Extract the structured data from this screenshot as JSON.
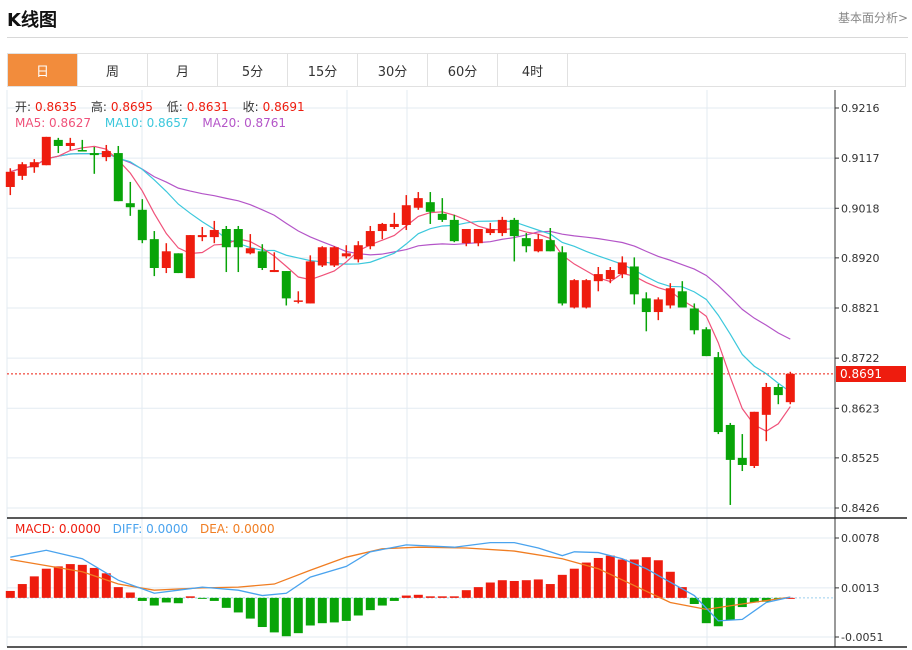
{
  "header": {
    "title": "K线图",
    "link": "基本面分析>"
  },
  "tabs": [
    {
      "label": "日",
      "active": true
    },
    {
      "label": "周"
    },
    {
      "label": "月"
    },
    {
      "label": "5分"
    },
    {
      "label": "15分"
    },
    {
      "label": "30分"
    },
    {
      "label": "60分"
    },
    {
      "label": "4时"
    }
  ],
  "ohlc_legend": {
    "open_label": "开:",
    "open": "0.8635",
    "high_label": "高:",
    "high": "0.8695",
    "low_label": "低:",
    "low": "0.8631",
    "close_label": "收:",
    "close": "0.8691"
  },
  "ma_legend": {
    "ma5": "MA5: 0.8627",
    "ma10": "MA10: 0.8657",
    "ma20": "MA20: 0.8761"
  },
  "macd_legend": {
    "macd": "MACD: 0.0000",
    "diff": "DIFF: 0.0000",
    "dea": "DEA: 0.0000"
  },
  "last_price_tag": "0.8691",
  "colors": {
    "up": "#ee1c0e",
    "down": "#08a408",
    "ma5": "#f0527a",
    "ma10": "#3cc8dc",
    "ma20": "#b455c8",
    "diff": "#4aa3ee",
    "dea": "#f07d22",
    "accent": "#f28c3c"
  },
  "chart_data": [
    {
      "type": "candlestick",
      "title": "K线图",
      "ylim": [
        0.8426,
        0.9216
      ],
      "yticks": [
        "0.9216",
        "0.9117",
        "0.9018",
        "0.8920",
        "0.8821",
        "0.8722",
        "0.8623",
        "0.8525",
        "0.8426"
      ],
      "ohlc": [
        [
          0.906,
          0.9097,
          0.9044,
          0.909
        ],
        [
          0.9082,
          0.9109,
          0.9074,
          0.9105
        ],
        [
          0.9099,
          0.9115,
          0.9088,
          0.9109
        ],
        [
          0.9103,
          0.9159,
          0.9103,
          0.9159
        ],
        [
          0.9153,
          0.9157,
          0.9127,
          0.9141
        ],
        [
          0.9141,
          0.9157,
          0.9133,
          0.9147
        ],
        [
          0.9133,
          0.9153,
          0.9131,
          0.9131
        ],
        [
          0.9127,
          0.9139,
          0.9086,
          0.9123
        ],
        [
          0.9119,
          0.9143,
          0.9111,
          0.9131
        ],
        [
          0.9127,
          0.9141,
          0.9032,
          0.9032
        ],
        [
          0.9028,
          0.907,
          0.9003,
          0.902
        ],
        [
          0.9015,
          0.9036,
          0.8949,
          0.8955
        ],
        [
          0.8957,
          0.8973,
          0.8884,
          0.89
        ],
        [
          0.89,
          0.8949,
          0.889,
          0.8933
        ],
        [
          0.8929,
          0.8929,
          0.889,
          0.889
        ],
        [
          0.888,
          0.8965,
          0.888,
          0.8965
        ],
        [
          0.8961,
          0.8981,
          0.8953,
          0.8965
        ],
        [
          0.8961,
          0.8993,
          0.8949,
          0.8975
        ],
        [
          0.8977,
          0.8983,
          0.8892,
          0.8941
        ],
        [
          0.8977,
          0.8983,
          0.8892,
          0.8941
        ],
        [
          0.8929,
          0.8967,
          0.8927,
          0.8939
        ],
        [
          0.8933,
          0.8947,
          0.8896,
          0.89
        ],
        [
          0.8892,
          0.8931,
          0.8892,
          0.8896
        ],
        [
          0.8894,
          0.8894,
          0.8826,
          0.884
        ],
        [
          0.8834,
          0.8854,
          0.883,
          0.8836
        ],
        [
          0.883,
          0.8925,
          0.883,
          0.8913
        ],
        [
          0.8905,
          0.8943,
          0.8902,
          0.8941
        ],
        [
          0.8905,
          0.8943,
          0.8902,
          0.8941
        ],
        [
          0.8923,
          0.8945,
          0.8919,
          0.8929
        ],
        [
          0.8917,
          0.8953,
          0.8911,
          0.8945
        ],
        [
          0.8943,
          0.8983,
          0.8937,
          0.8973
        ],
        [
          0.8973,
          0.8989,
          0.8957,
          0.8987
        ],
        [
          0.8981,
          0.9009,
          0.8977,
          0.8987
        ],
        [
          0.8985,
          0.9044,
          0.8975,
          0.9024
        ],
        [
          0.9019,
          0.905,
          0.9015,
          0.9038
        ],
        [
          0.903,
          0.905,
          0.8987,
          0.9011
        ],
        [
          0.9007,
          0.9038,
          0.8991,
          0.8995
        ],
        [
          0.8995,
          0.9005,
          0.8951,
          0.8953
        ],
        [
          0.8949,
          0.8977,
          0.8943,
          0.8977
        ],
        [
          0.8949,
          0.8977,
          0.8943,
          0.8977
        ],
        [
          0.8969,
          0.8989,
          0.8965,
          0.8977
        ],
        [
          0.8969,
          0.9001,
          0.8963,
          0.8995
        ],
        [
          0.8995,
          0.8999,
          0.8913,
          0.8963
        ],
        [
          0.8959,
          0.8969,
          0.8931,
          0.8943
        ],
        [
          0.8933,
          0.8967,
          0.8931,
          0.8957
        ],
        [
          0.8955,
          0.8979,
          0.8933,
          0.8933
        ],
        [
          0.8931,
          0.8943,
          0.8826,
          0.883
        ],
        [
          0.8822,
          0.8878,
          0.882,
          0.8876
        ],
        [
          0.8822,
          0.8878,
          0.882,
          0.8876
        ],
        [
          0.8874,
          0.8902,
          0.8854,
          0.8888
        ],
        [
          0.8878,
          0.8902,
          0.887,
          0.8896
        ],
        [
          0.8888,
          0.8923,
          0.888,
          0.8911
        ],
        [
          0.8903,
          0.8921,
          0.8828,
          0.8848
        ],
        [
          0.884,
          0.8852,
          0.8775,
          0.8813
        ],
        [
          0.8813,
          0.8842,
          0.8797,
          0.8838
        ],
        [
          0.8826,
          0.887,
          0.882,
          0.886
        ],
        [
          0.8854,
          0.8874,
          0.8822,
          0.8822
        ],
        [
          0.882,
          0.883,
          0.8769,
          0.8777
        ],
        [
          0.8779,
          0.8783,
          0.8726,
          0.8726
        ],
        [
          0.8724,
          0.8734,
          0.8572,
          0.8576
        ],
        [
          0.859,
          0.8594,
          0.8432,
          0.8521
        ],
        [
          0.8525,
          0.8572,
          0.8499,
          0.8511
        ],
        [
          0.8509,
          0.8616,
          0.8505,
          0.8616
        ],
        [
          0.861,
          0.8673,
          0.8558,
          0.8665
        ],
        [
          0.8665,
          0.8671,
          0.8631,
          0.8649
        ],
        [
          0.8635,
          0.8695,
          0.8631,
          0.8691
        ]
      ],
      "last_price": 0.8691
    },
    {
      "type": "bar",
      "title": "MACD",
      "ylim": [
        -0.0051,
        0.0078
      ],
      "yticks": [
        "0.0078",
        "0.0013",
        "-0.0051"
      ],
      "macd": [
        0.0009,
        0.0018,
        0.0028,
        0.0038,
        0.0041,
        0.0044,
        0.0043,
        0.0039,
        0.0032,
        0.0014,
        0.0007,
        -0.0004,
        -0.001,
        -0.0006,
        -0.0007,
        0.0002,
        -0.0001,
        -0.0004,
        -0.0013,
        -0.0019,
        -0.0027,
        -0.0038,
        -0.0045,
        -0.005,
        -0.0046,
        -0.0036,
        -0.0033,
        -0.0032,
        -0.003,
        -0.0023,
        -0.0016,
        -0.001,
        -0.0004,
        0.0003,
        0.0004,
        0.0002,
        0.0002,
        0.0002,
        0.001,
        0.0014,
        0.002,
        0.0023,
        0.0022,
        0.0023,
        0.0024,
        0.0018,
        0.003,
        0.0038,
        0.0046,
        0.0052,
        0.0055,
        0.005,
        0.005,
        0.0053,
        0.0049,
        0.0034,
        0.0014,
        -0.0008,
        -0.0033,
        -0.0037,
        -0.0029,
        -0.0012,
        -0.0006,
        -0.0005,
        -0.0001,
        0.0
      ],
      "diff": [
        [
          0,
          0.0053
        ],
        [
          3,
          0.0062
        ],
        [
          6,
          0.0051
        ],
        [
          9,
          0.0023
        ],
        [
          12,
          0.0006
        ],
        [
          14,
          0.001
        ],
        [
          16,
          0.0014
        ],
        [
          19,
          0.001
        ],
        [
          21,
          0.0003
        ],
        [
          23,
          0.0006
        ],
        [
          25,
          0.0027
        ],
        [
          28,
          0.0041
        ],
        [
          30,
          0.006
        ],
        [
          33,
          0.0069
        ],
        [
          37,
          0.0066
        ],
        [
          40,
          0.0072
        ],
        [
          42,
          0.0072
        ],
        [
          44,
          0.0065
        ],
        [
          46,
          0.0055
        ],
        [
          47,
          0.006
        ],
        [
          49,
          0.0059
        ],
        [
          51,
          0.0051
        ],
        [
          53,
          0.0038
        ],
        [
          54,
          0.0029
        ],
        [
          57,
          0.0003
        ],
        [
          59,
          -0.003
        ],
        [
          61,
          -0.0028
        ],
        [
          63,
          -0.0006
        ],
        [
          65,
          0.0001
        ]
      ],
      "dea": [
        [
          0,
          0.005
        ],
        [
          3,
          0.0042
        ],
        [
          6,
          0.0034
        ],
        [
          9,
          0.0018
        ],
        [
          12,
          0.001
        ],
        [
          16,
          0.0013
        ],
        [
          19,
          0.0014
        ],
        [
          22,
          0.0018
        ],
        [
          25,
          0.0036
        ],
        [
          28,
          0.0053
        ],
        [
          31,
          0.0064
        ],
        [
          34,
          0.0066
        ],
        [
          38,
          0.0065
        ],
        [
          42,
          0.0061
        ],
        [
          46,
          0.0051
        ],
        [
          49,
          0.0038
        ],
        [
          52,
          0.0016
        ],
        [
          55,
          -0.0006
        ],
        [
          58,
          -0.0015
        ],
        [
          61,
          -0.0008
        ],
        [
          65,
          0.0001
        ]
      ]
    }
  ]
}
